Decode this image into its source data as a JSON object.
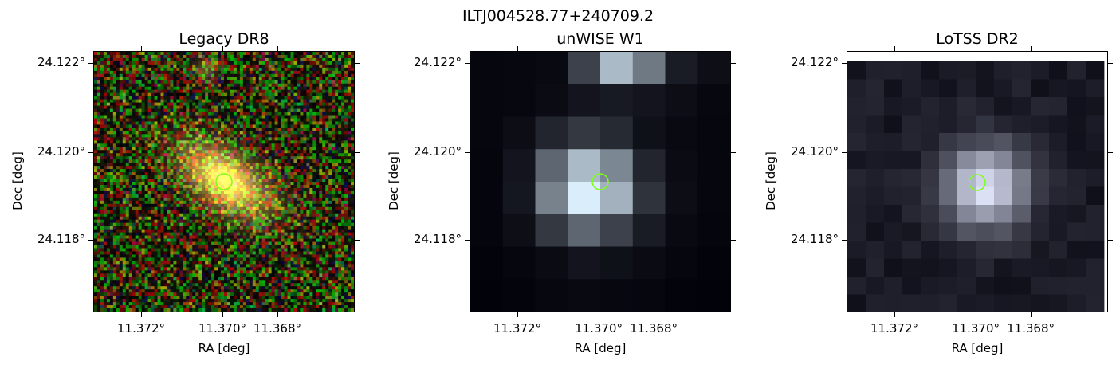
{
  "figure": {
    "title": "ILTJ004528.77+240709.2",
    "marker_color": "#7dff1a"
  },
  "panels": [
    {
      "title": "Legacy DR8",
      "xlabel": "RA [deg]",
      "ylabel": "Dec [deg]",
      "xticks": [
        "11.372°",
        "11.370°",
        "11.368°"
      ],
      "yticks": [
        "24.122°",
        "24.120°",
        "24.118°"
      ],
      "image": "color-noise galaxy"
    },
    {
      "title": "unWISE W1",
      "xlabel": "RA [deg]",
      "ylabel": "Dec [deg]",
      "xticks": [
        "11.372°",
        "11.370°",
        "11.368°"
      ],
      "yticks": [
        "24.122°",
        "24.120°",
        "24.118°"
      ],
      "image": "grayscale pixelated source"
    },
    {
      "title": "LoTSS DR2",
      "xlabel": "RA [deg]",
      "ylabel": "Dec [deg]",
      "xticks": [
        "11.372°",
        "11.370°",
        "11.368°"
      ],
      "yticks": [
        "24.122°",
        "24.120°",
        "24.118°"
      ],
      "image": "grayscale pixelated source"
    }
  ]
}
